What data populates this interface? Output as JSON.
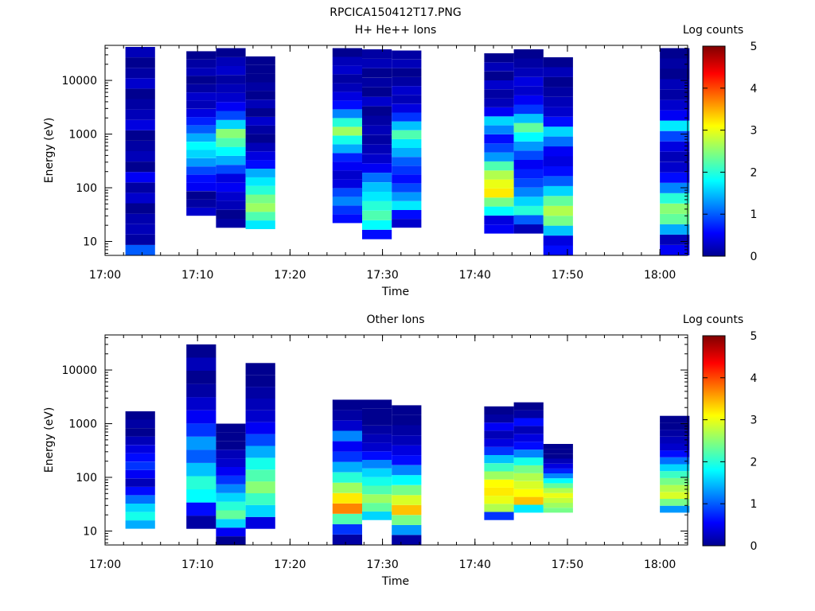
{
  "figure": {
    "title": "RPCICA150412T17.PNG"
  },
  "colorbar": {
    "label": "Log counts",
    "ticks": [
      "0",
      "1",
      "2",
      "3",
      "4",
      "5"
    ],
    "range": [
      0,
      5
    ],
    "colormap": [
      "#00008f",
      "#0000ff",
      "#00ffff",
      "#ffff00",
      "#ff0000",
      "#800000"
    ]
  },
  "chart_data": [
    {
      "type": "heatmap",
      "title": "H+ He++ Ions",
      "xlabel": "Time",
      "ylabel": "Energy (eV)",
      "x_scale": "time",
      "y_scale": "log",
      "xlim": [
        "17:00",
        "18:03"
      ],
      "ylim": [
        5.5,
        45000
      ],
      "xticks": [
        "17:00",
        "17:10",
        "17:20",
        "17:30",
        "17:40",
        "17:50",
        "18:00"
      ],
      "yticks": [
        "10",
        "100",
        "1000",
        "10000"
      ],
      "colorbar_label": "Log counts",
      "columns": [
        {
          "start": "17:02:12",
          "end": "17:05:24",
          "e_low": 5.5,
          "e_high": 42000,
          "log_counts": [
            1.0,
            0.1,
            0.2,
            0.15,
            0.0,
            0.3,
            0.1,
            0.5,
            0.0,
            0.2,
            0.1,
            0.0,
            0.4,
            0.2,
            0.1,
            0.0,
            0.3,
            0.1,
            0.0,
            0.2
          ]
        },
        {
          "start": "17:08:48",
          "end": "17:12:00",
          "e_low": 30,
          "e_high": 35000,
          "log_counts": [
            0.3,
            0.1,
            0.0,
            0.5,
            0.6,
            0.9,
            1.3,
            1.6,
            1.8,
            1.4,
            1.0,
            0.7,
            0.4,
            0.2,
            0.3,
            0.1,
            0.0,
            0.2,
            0.1,
            0.0
          ]
        },
        {
          "start": "17:12:00",
          "end": "17:15:12",
          "e_low": 18,
          "e_high": 40000,
          "log_counts": [
            0.1,
            0.0,
            0.2,
            0.3,
            0.5,
            0.4,
            0.9,
            1.4,
            1.8,
            2.2,
            2.5,
            1.6,
            0.9,
            0.5,
            0.3,
            0.2,
            0.1,
            0.3,
            0.2,
            0.0
          ]
        },
        {
          "start": "17:15:12",
          "end": "17:18:24",
          "e_low": 17,
          "e_high": 28000,
          "log_counts": [
            1.7,
            2.2,
            2.6,
            2.4,
            2.0,
            1.7,
            1.4,
            0.6,
            0.4,
            0.2,
            0.0,
            0.1,
            0.3,
            0.0,
            0.2,
            0.0,
            0.1,
            0.0,
            0.0,
            0.0
          ]
        },
        {
          "start": "17:24:36",
          "end": "17:27:48",
          "e_low": 22,
          "e_high": 40000,
          "log_counts": [
            0.6,
            0.8,
            1.2,
            0.9,
            0.4,
            0.3,
            0.5,
            0.7,
            1.4,
            1.9,
            2.6,
            2.0,
            1.2,
            0.6,
            0.4,
            0.2,
            0.1,
            0.3,
            0.2,
            0.0
          ]
        },
        {
          "start": "17:27:48",
          "end": "17:31:00",
          "e_low": 11,
          "e_high": 38000,
          "log_counts": [
            0.6,
            1.8,
            2.2,
            2.0,
            1.7,
            1.5,
            1.1,
            0.5,
            0.3,
            0.2,
            0.1,
            0.2,
            0.1,
            0.0,
            0.3,
            0.0,
            0.1,
            0.0,
            0.2,
            0.1
          ]
        },
        {
          "start": "17:31:00",
          "end": "17:34:12",
          "e_low": 18,
          "e_high": 36000,
          "log_counts": [
            0.3,
            0.6,
            1.7,
            1.3,
            0.9,
            0.6,
            0.8,
            1.0,
            1.4,
            1.7,
            2.2,
            1.5,
            0.8,
            0.4,
            0.2,
            0.3,
            0.1,
            0.0,
            0.2,
            0.1
          ]
        },
        {
          "start": "17:41:00",
          "end": "17:44:12",
          "e_low": 14,
          "e_high": 32000,
          "log_counts": [
            0.5,
            0.4,
            1.8,
            2.4,
            3.2,
            3.0,
            2.7,
            2.2,
            1.3,
            0.9,
            0.6,
            1.2,
            1.6,
            0.5,
            0.2,
            0.1,
            0.3,
            0.0,
            0.2,
            0.0
          ]
        },
        {
          "start": "17:44:12",
          "end": "17:47:24",
          "e_low": 14,
          "e_high": 38000,
          "log_counts": [
            0.2,
            1.0,
            2.0,
            1.6,
            1.2,
            0.9,
            0.7,
            0.5,
            0.9,
            1.3,
            1.8,
            2.3,
            1.5,
            0.8,
            0.5,
            0.3,
            0.4,
            0.2,
            0.1,
            0.0
          ]
        },
        {
          "start": "17:47:24",
          "end": "17:50:36",
          "e_low": 5.5,
          "e_high": 27000,
          "log_counts": [
            0.6,
            0.4,
            1.5,
            2.4,
            2.7,
            2.3,
            1.6,
            1.0,
            0.6,
            0.4,
            0.5,
            1.1,
            1.6,
            0.6,
            0.3,
            0.2,
            0.1,
            0.0,
            0.2,
            0.0
          ]
        },
        {
          "start": "18:00:00",
          "end": "18:03:12",
          "e_low": 5.5,
          "e_high": 40000,
          "log_counts": [
            0.5,
            0.2,
            1.4,
            2.3,
            2.5,
            2.0,
            1.2,
            0.6,
            0.3,
            0.2,
            0.4,
            0.9,
            1.7,
            0.5,
            0.3,
            0.1,
            0.2,
            0.0,
            0.1,
            0.0
          ]
        }
      ]
    },
    {
      "type": "heatmap",
      "title": "Other Ions",
      "xlabel": "Time",
      "ylabel": "Energy (eV)",
      "x_scale": "time",
      "y_scale": "log",
      "xlim": [
        "17:00",
        "18:03"
      ],
      "ylim": [
        5.5,
        45000
      ],
      "xticks": [
        "17:00",
        "17:10",
        "17:20",
        "17:30",
        "17:40",
        "17:50",
        "18:00"
      ],
      "yticks": [
        "10",
        "100",
        "1000",
        "10000"
      ],
      "colorbar_label": "Log counts",
      "columns": [
        {
          "start": "17:02:12",
          "end": "17:05:24",
          "e_low": 11,
          "e_high": 1700,
          "log_counts": [
            1.4,
            1.9,
            1.6,
            1.1,
            0.6,
            0.2,
            0.5,
            0.8,
            0.6,
            0.4,
            0.2,
            0.0,
            0.1,
            0.0
          ]
        },
        {
          "start": "17:08:48",
          "end": "17:12:00",
          "e_low": 11,
          "e_high": 30000,
          "log_counts": [
            0.1,
            0.6,
            1.8,
            2.0,
            1.5,
            1.0,
            1.3,
            0.8,
            0.5,
            0.3,
            0.1,
            0.0,
            0.2,
            0.0
          ]
        },
        {
          "start": "17:12:00",
          "end": "17:15:12",
          "e_low": 5.5,
          "e_high": 1000,
          "log_counts": [
            0.0,
            0.5,
            1.6,
            2.3,
            2.0,
            1.6,
            1.2,
            0.8,
            0.5,
            0.3,
            0.2,
            0.0,
            0.0,
            0.0
          ]
        },
        {
          "start": "17:15:12",
          "end": "17:18:24",
          "e_low": 11,
          "e_high": 13500,
          "log_counts": [
            0.4,
            1.6,
            2.1,
            2.5,
            2.2,
            1.9,
            1.4,
            0.9,
            0.5,
            0.3,
            0.2,
            0.1,
            0.0,
            0.0
          ]
        },
        {
          "start": "17:24:36",
          "end": "17:27:48",
          "e_low": 5.5,
          "e_high": 2800,
          "log_counts": [
            0.1,
            0.8,
            2.2,
            3.7,
            3.2,
            2.6,
            2.0,
            1.4,
            0.8,
            0.5,
            1.2,
            0.3,
            0.1,
            0.0
          ]
        },
        {
          "start": "17:27:48",
          "end": "17:31:00",
          "e_low": 16,
          "e_high": 2800,
          "log_counts": [
            1.6,
            2.3,
            2.6,
            2.2,
            1.9,
            1.6,
            1.2,
            0.6,
            0.3,
            0.2,
            0.1,
            0.0,
            0.0,
            0.0
          ]
        },
        {
          "start": "17:31:00",
          "end": "17:34:12",
          "e_low": 5.5,
          "e_high": 2200,
          "log_counts": [
            0.1,
            1.3,
            2.4,
            3.4,
            2.9,
            2.4,
            1.8,
            1.2,
            0.6,
            0.4,
            0.2,
            0.1,
            0.0,
            0.0
          ]
        },
        {
          "start": "17:41:00",
          "end": "17:44:12",
          "e_low": 16,
          "e_high": 2100,
          "log_counts": [
            0.8,
            2.7,
            3.0,
            3.2,
            3.1,
            2.6,
            2.1,
            1.5,
            0.8,
            0.4,
            0.2,
            0.5,
            0.1,
            0.0
          ]
        },
        {
          "start": "17:44:12",
          "end": "17:47:24",
          "e_low": 22,
          "e_high": 2500,
          "log_counts": [
            1.7,
            3.4,
            3.1,
            2.9,
            2.7,
            2.4,
            1.9,
            1.2,
            0.6,
            0.4,
            0.2,
            0.6,
            0.1,
            0.0
          ]
        },
        {
          "start": "17:47:24",
          "end": "17:50:36",
          "e_low": 22,
          "e_high": 420,
          "log_counts": [
            2.4,
            2.6,
            2.8,
            3.0,
            2.7,
            2.3,
            1.8,
            1.2,
            0.7,
            0.4,
            0.2,
            0.0,
            0.0,
            0.0
          ]
        },
        {
          "start": "18:00:00",
          "end": "18:03:12",
          "e_low": 22,
          "e_high": 1400,
          "log_counts": [
            1.3,
            2.4,
            2.9,
            2.7,
            2.4,
            2.1,
            1.6,
            1.1,
            0.6,
            0.3,
            0.2,
            0.1,
            0.0,
            0.0
          ]
        }
      ]
    }
  ]
}
